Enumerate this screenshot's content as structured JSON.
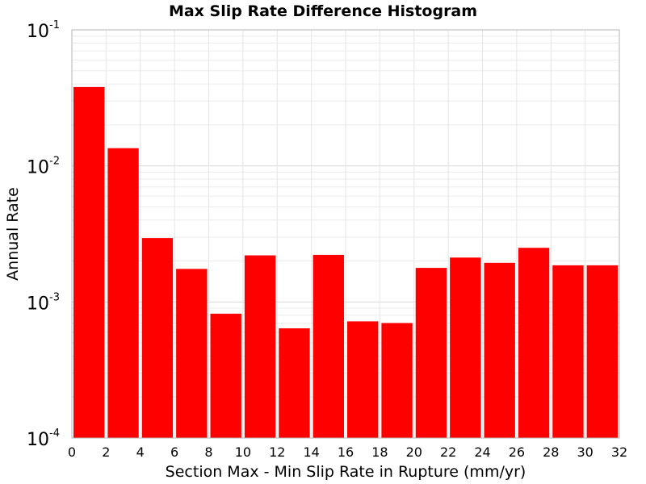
{
  "chart_data": {
    "type": "bar",
    "title": "Max Slip Rate Difference Histogram",
    "xlabel": "Section Max - Min Slip Rate in Rupture (mm/yr)",
    "ylabel": "Annual Rate",
    "xlim": [
      0,
      32
    ],
    "ylim": [
      0.0001,
      0.1
    ],
    "yscale": "log",
    "grid": true,
    "bar_color": "#ff0000",
    "bin_width": 2,
    "x_ticks": [
      "0",
      "2",
      "4",
      "6",
      "8",
      "10",
      "12",
      "14",
      "16",
      "18",
      "20",
      "22",
      "24",
      "26",
      "28",
      "30",
      "32"
    ],
    "y_ticks": [
      {
        "base": "10",
        "exp": "-4",
        "value": 0.0001
      },
      {
        "base": "10",
        "exp": "-3",
        "value": 0.001
      },
      {
        "base": "10",
        "exp": "-2",
        "value": 0.01
      },
      {
        "base": "10",
        "exp": "-1",
        "value": 0.1
      }
    ],
    "bars": [
      {
        "x": 1,
        "value": 0.038
      },
      {
        "x": 3,
        "value": 0.0135
      },
      {
        "x": 5,
        "value": 0.00295
      },
      {
        "x": 7,
        "value": 0.00175
      },
      {
        "x": 9,
        "value": 0.00082
      },
      {
        "x": 11,
        "value": 0.0022
      },
      {
        "x": 13,
        "value": 0.00064
      },
      {
        "x": 15,
        "value": 0.00222
      },
      {
        "x": 17,
        "value": 0.00072
      },
      {
        "x": 19,
        "value": 0.0007
      },
      {
        "x": 21,
        "value": 0.00178
      },
      {
        "x": 23,
        "value": 0.00212
      },
      {
        "x": 25,
        "value": 0.00194
      },
      {
        "x": 27,
        "value": 0.0025
      },
      {
        "x": 29,
        "value": 0.00186
      },
      {
        "x": 31,
        "value": 0.00186
      }
    ]
  }
}
